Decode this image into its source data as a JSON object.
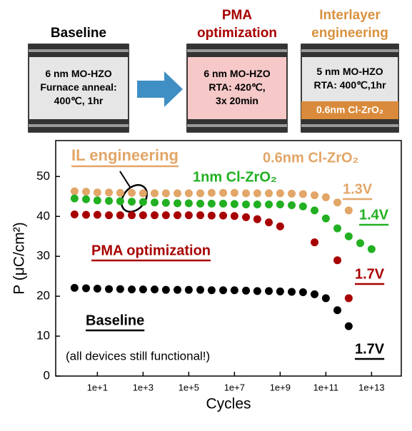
{
  "diagram": {
    "arrow_color": "#3f8fc4",
    "panels": [
      {
        "title": [
          "Baseline"
        ],
        "title_color": "#000000",
        "body": [
          "6 nm MO-HZO",
          "Furnace anneal:",
          "400℃, 1hr"
        ],
        "body_color": "#e6e6e6"
      },
      {
        "title": [
          "PMA",
          "optimization"
        ],
        "title_color": "#a80000",
        "body": [
          "6 nm MO-HZO",
          "RTA: 420℃,",
          "3x 20min"
        ],
        "body_color": "#f6c8c8"
      },
      {
        "title": [
          "Interlayer",
          "engineering"
        ],
        "title_color": "#d9913f",
        "body": [
          "5 nm MO-HZO",
          "RTA: 400℃,1hr"
        ],
        "body_color": "#e6e6e6",
        "layer": "0.6nm Cl-ZrO₂",
        "layer_color": "#d98a3a"
      }
    ]
  },
  "chart_data": {
    "type": "scatter",
    "x_label": "Cycles",
    "y_label": "P (μC/cm²)",
    "log_x": true,
    "xlim": [
      0.15,
      200000000000000.0
    ],
    "ylim": [
      0,
      59
    ],
    "xticks": [
      {
        "value": 10,
        "label": "1e+1"
      },
      {
        "value": 1000,
        "label": "1e+3"
      },
      {
        "value": 100000,
        "label": "1e+5"
      },
      {
        "value": 10000000,
        "label": "1e+7"
      },
      {
        "value": 1000000000,
        "label": "1e+9"
      },
      {
        "value": 100000000000,
        "label": "1e+11"
      },
      {
        "value": 10000000000000,
        "label": "1e+13"
      }
    ],
    "yticks": [
      0,
      10,
      20,
      30,
      40,
      50
    ],
    "x": [
      1,
      3.2,
      10,
      32,
      100,
      320,
      1000,
      3200,
      10000.0,
      32000.0,
      100000.0,
      320000.0,
      1000000.0,
      3200000.0,
      10000000.0,
      32000000.0,
      100000000.0,
      320000000.0,
      1000000000.0,
      3200000000.0,
      10000000000.0,
      32000000000.0,
      100000000000.0,
      320000000000.0,
      1000000000000.0,
      3200000000000.0,
      10000000000000.0
    ],
    "series": [
      {
        "name": "0.6nm Cl-ZrO₂",
        "voltage": "1.3V",
        "color": "#e2a668",
        "values": [
          46.3,
          46.2,
          46,
          46,
          45.9,
          45.9,
          45.8,
          45.8,
          45.8,
          45.8,
          45.8,
          45.8,
          45.9,
          45.9,
          45.9,
          45.8,
          45.8,
          45.8,
          45.8,
          45.7,
          45.6,
          45.3,
          44.8,
          43.5,
          41.5,
          null,
          null
        ]
      },
      {
        "name": "1nm Cl-ZrO₂",
        "voltage": "1.4V",
        "color": "#22b022",
        "values": [
          44.5,
          44.3,
          44,
          43.9,
          43.8,
          43.7,
          43.6,
          43.5,
          43.4,
          43.3,
          43.3,
          43.2,
          43.2,
          43.2,
          43.1,
          43,
          43,
          43,
          43,
          42.8,
          42.5,
          41.5,
          39.5,
          37,
          35,
          33.3,
          31.8
        ]
      },
      {
        "name": "PMA optimization",
        "voltage": "1.7V",
        "color": "#a80000",
        "values": [
          40.5,
          40.4,
          40.4,
          40.3,
          40.3,
          40.3,
          40.3,
          40.3,
          40.3,
          40.3,
          40.3,
          40.3,
          40.2,
          40.2,
          40.1,
          39.8,
          39.3,
          38.5,
          37.5,
          null,
          null,
          33.5,
          null,
          29,
          19.5,
          null,
          null
        ]
      },
      {
        "name": "Baseline",
        "voltage": "1.7V",
        "color": "#000000",
        "values": [
          22.1,
          22,
          21.9,
          21.8,
          21.8,
          21.7,
          21.7,
          21.7,
          21.6,
          21.6,
          21.6,
          21.6,
          21.5,
          21.5,
          21.5,
          21.4,
          21.3,
          21.3,
          21.2,
          21.1,
          21,
          20.5,
          19.5,
          16.5,
          12.5,
          null,
          null
        ]
      }
    ],
    "annotations": [
      {
        "text": "IL engineering",
        "color": "#e2a668"
      },
      {
        "text": "(all devices still functional!)",
        "color": "#000000"
      }
    ]
  }
}
